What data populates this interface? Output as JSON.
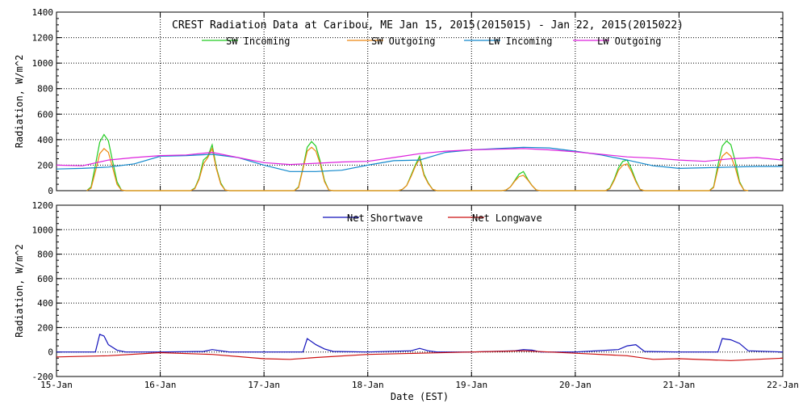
{
  "chart_data": [
    {
      "type": "line",
      "title": "CREST Radiation Data at Caribou, ME   Jan 15, 2015(2015015) - Jan 22, 2015(2015022)",
      "xlabel": "",
      "ylabel": "Radiation, W/m^2",
      "xlim": [
        "2015-01-15",
        "2015-01-22"
      ],
      "ylim": [
        0,
        1400
      ],
      "yticks": [
        0,
        200,
        400,
        600,
        800,
        1000,
        1200,
        1400
      ],
      "grid": true,
      "legend_placement": "top",
      "series": [
        {
          "name": "SW Incoming",
          "color": "#22cc22",
          "x": [
            "2015-01-15 07:00",
            "2015-01-15 08:00",
            "2015-01-15 09:00",
            "2015-01-15 10:00",
            "2015-01-15 11:00",
            "2015-01-15 12:00",
            "2015-01-15 13:00",
            "2015-01-15 14:00",
            "2015-01-15 15:00",
            "2015-01-15 16:00",
            "2015-01-16 07:00",
            "2015-01-16 08:00",
            "2015-01-16 09:00",
            "2015-01-16 10:00",
            "2015-01-16 11:00",
            "2015-01-16 12:00",
            "2015-01-16 13:00",
            "2015-01-16 14:00",
            "2015-01-16 15:00",
            "2015-01-16 16:00",
            "2015-01-17 07:00",
            "2015-01-17 08:00",
            "2015-01-17 09:00",
            "2015-01-17 10:00",
            "2015-01-17 11:00",
            "2015-01-17 12:00",
            "2015-01-17 13:00",
            "2015-01-17 14:00",
            "2015-01-17 15:00",
            "2015-01-17 16:00",
            "2015-01-18 07:00",
            "2015-01-18 08:00",
            "2015-01-18 09:00",
            "2015-01-18 10:00",
            "2015-01-18 11:00",
            "2015-01-18 12:00",
            "2015-01-18 13:00",
            "2015-01-18 14:00",
            "2015-01-18 15:00",
            "2015-01-18 16:00",
            "2015-01-19 07:00",
            "2015-01-19 08:00",
            "2015-01-19 09:00",
            "2015-01-19 10:00",
            "2015-01-19 11:00",
            "2015-01-19 12:00",
            "2015-01-19 13:00",
            "2015-01-19 14:00",
            "2015-01-19 15:00",
            "2015-01-19 16:00",
            "2015-01-20 07:00",
            "2015-01-20 08:00",
            "2015-01-20 09:00",
            "2015-01-20 10:00",
            "2015-01-20 11:00",
            "2015-01-20 12:00",
            "2015-01-20 13:00",
            "2015-01-20 14:00",
            "2015-01-20 15:00",
            "2015-01-20 16:00",
            "2015-01-21 07:00",
            "2015-01-21 08:00",
            "2015-01-21 09:00",
            "2015-01-21 10:00",
            "2015-01-21 11:00",
            "2015-01-21 12:00",
            "2015-01-21 13:00",
            "2015-01-21 14:00",
            "2015-01-21 15:00",
            "2015-01-21 16:00"
          ],
          "values": [
            0,
            30,
            200,
            380,
            440,
            390,
            230,
            70,
            5,
            0,
            0,
            20,
            100,
            240,
            270,
            360,
            180,
            60,
            5,
            0,
            0,
            30,
            180,
            340,
            385,
            350,
            230,
            80,
            5,
            0,
            0,
            10,
            40,
            120,
            200,
            270,
            130,
            60,
            10,
            0,
            0,
            5,
            30,
            80,
            130,
            150,
            90,
            40,
            5,
            0,
            0,
            20,
            90,
            180,
            230,
            240,
            170,
            80,
            10,
            0,
            0,
            30,
            200,
            350,
            390,
            360,
            230,
            70,
            5,
            0
          ]
        },
        {
          "name": "SW Outgoing",
          "color": "#ee8811",
          "x": [
            "2015-01-15 07:00",
            "2015-01-15 08:00",
            "2015-01-15 09:00",
            "2015-01-15 10:00",
            "2015-01-15 11:00",
            "2015-01-15 12:00",
            "2015-01-15 13:00",
            "2015-01-15 14:00",
            "2015-01-15 15:00",
            "2015-01-15 16:00",
            "2015-01-16 07:00",
            "2015-01-16 08:00",
            "2015-01-16 09:00",
            "2015-01-16 10:00",
            "2015-01-16 11:00",
            "2015-01-16 12:00",
            "2015-01-16 13:00",
            "2015-01-16 14:00",
            "2015-01-16 15:00",
            "2015-01-16 16:00",
            "2015-01-17 07:00",
            "2015-01-17 08:00",
            "2015-01-17 09:00",
            "2015-01-17 10:00",
            "2015-01-17 11:00",
            "2015-01-17 12:00",
            "2015-01-17 13:00",
            "2015-01-17 14:00",
            "2015-01-17 15:00",
            "2015-01-17 16:00",
            "2015-01-18 07:00",
            "2015-01-18 08:00",
            "2015-01-18 09:00",
            "2015-01-18 10:00",
            "2015-01-18 11:00",
            "2015-01-18 12:00",
            "2015-01-18 13:00",
            "2015-01-18 14:00",
            "2015-01-18 15:00",
            "2015-01-18 16:00",
            "2015-01-19 07:00",
            "2015-01-19 08:00",
            "2015-01-19 09:00",
            "2015-01-19 10:00",
            "2015-01-19 11:00",
            "2015-01-19 12:00",
            "2015-01-19 13:00",
            "2015-01-19 14:00",
            "2015-01-19 15:00",
            "2015-01-19 16:00",
            "2015-01-20 07:00",
            "2015-01-20 08:00",
            "2015-01-20 09:00",
            "2015-01-20 10:00",
            "2015-01-20 11:00",
            "2015-01-20 12:00",
            "2015-01-20 13:00",
            "2015-01-20 14:00",
            "2015-01-20 15:00",
            "2015-01-20 16:00",
            "2015-01-21 07:00",
            "2015-01-21 08:00",
            "2015-01-21 09:00",
            "2015-01-21 10:00",
            "2015-01-21 11:00",
            "2015-01-21 12:00",
            "2015-01-21 13:00",
            "2015-01-21 14:00",
            "2015-01-21 15:00",
            "2015-01-21 16:00"
          ],
          "values": [
            0,
            20,
            150,
            290,
            330,
            300,
            180,
            50,
            5,
            0,
            0,
            15,
            90,
            210,
            260,
            330,
            170,
            50,
            5,
            0,
            0,
            25,
            170,
            310,
            340,
            310,
            210,
            70,
            5,
            0,
            0,
            10,
            40,
            110,
            190,
            250,
            120,
            55,
            10,
            0,
            0,
            5,
            30,
            75,
            110,
            120,
            85,
            40,
            5,
            0,
            0,
            15,
            80,
            160,
            200,
            210,
            150,
            70,
            10,
            0,
            0,
            25,
            170,
            270,
            300,
            270,
            180,
            60,
            5,
            0
          ]
        },
        {
          "name": "LW Incoming",
          "color": "#1188cc",
          "x": [
            "2015-01-15",
            "2015-01-15 06:00",
            "2015-01-15 12:00",
            "2015-01-15 18:00",
            "2015-01-16",
            "2015-01-16 06:00",
            "2015-01-16 12:00",
            "2015-01-16 18:00",
            "2015-01-17",
            "2015-01-17 06:00",
            "2015-01-17 12:00",
            "2015-01-17 18:00",
            "2015-01-18",
            "2015-01-18 06:00",
            "2015-01-18 12:00",
            "2015-01-18 18:00",
            "2015-01-19",
            "2015-01-19 06:00",
            "2015-01-19 12:00",
            "2015-01-19 18:00",
            "2015-01-20",
            "2015-01-20 06:00",
            "2015-01-20 12:00",
            "2015-01-20 18:00",
            "2015-01-21",
            "2015-01-21 06:00",
            "2015-01-21 12:00",
            "2015-01-21 18:00",
            "2015-01-22"
          ],
          "values": [
            170,
            175,
            185,
            210,
            270,
            275,
            285,
            260,
            200,
            150,
            150,
            160,
            200,
            235,
            240,
            300,
            320,
            330,
            340,
            335,
            310,
            280,
            240,
            195,
            175,
            180,
            185,
            190,
            190
          ]
        },
        {
          "name": "LW Outgoing",
          "color": "#dd22dd",
          "x": [
            "2015-01-15",
            "2015-01-15 06:00",
            "2015-01-15 12:00",
            "2015-01-15 18:00",
            "2015-01-16",
            "2015-01-16 06:00",
            "2015-01-16 12:00",
            "2015-01-16 18:00",
            "2015-01-17",
            "2015-01-17 06:00",
            "2015-01-17 12:00",
            "2015-01-17 18:00",
            "2015-01-18",
            "2015-01-18 06:00",
            "2015-01-18 12:00",
            "2015-01-18 18:00",
            "2015-01-19",
            "2015-01-19 06:00",
            "2015-01-19 12:00",
            "2015-01-19 18:00",
            "2015-01-20",
            "2015-01-20 06:00",
            "2015-01-20 12:00",
            "2015-01-20 18:00",
            "2015-01-21",
            "2015-01-21 06:00",
            "2015-01-21 12:00",
            "2015-01-21 18:00",
            "2015-01-22"
          ],
          "values": [
            200,
            195,
            240,
            260,
            275,
            280,
            300,
            260,
            220,
            205,
            215,
            225,
            230,
            260,
            290,
            310,
            320,
            325,
            330,
            320,
            305,
            285,
            265,
            255,
            240,
            230,
            250,
            260,
            240
          ]
        }
      ]
    },
    {
      "type": "line",
      "title": "",
      "xlabel": "Date (EST)",
      "ylabel": "Radiation, W/m^2",
      "xlim": [
        "2015-01-15",
        "2015-01-22"
      ],
      "ylim": [
        -200,
        1200
      ],
      "yticks": [
        -200,
        0,
        200,
        400,
        600,
        800,
        1000,
        1200
      ],
      "xticks": [
        "2015-01-15",
        "2015-01-16",
        "2015-01-17",
        "2015-01-18",
        "2015-01-19",
        "2015-01-20",
        "2015-01-21",
        "2015-01-22"
      ],
      "xtick_labels": [
        "15-Jan",
        "16-Jan",
        "17-Jan",
        "18-Jan",
        "19-Jan",
        "20-Jan",
        "21-Jan",
        "22-Jan"
      ],
      "grid": true,
      "legend_placement": "top",
      "series": [
        {
          "name": "Net Shortwave",
          "color": "#1111bb",
          "x": [
            "2015-01-15",
            "2015-01-15 09:00",
            "2015-01-15 10:00",
            "2015-01-15 11:00",
            "2015-01-15 12:00",
            "2015-01-15 14:00",
            "2015-01-15 16:00",
            "2015-01-16",
            "2015-01-16 10:00",
            "2015-01-16 12:00",
            "2015-01-16 14:00",
            "2015-01-16 16:00",
            "2015-01-17",
            "2015-01-17 09:00",
            "2015-01-17 10:00",
            "2015-01-17 12:00",
            "2015-01-17 14:00",
            "2015-01-17 16:00",
            "2015-01-18",
            "2015-01-18 10:00",
            "2015-01-18 12:00",
            "2015-01-18 14:00",
            "2015-01-18 16:00",
            "2015-01-19",
            "2015-01-19 10:00",
            "2015-01-19 12:00",
            "2015-01-19 14:00",
            "2015-01-19 16:00",
            "2015-01-20",
            "2015-01-20 10:00",
            "2015-01-20 12:00",
            "2015-01-20 14:00",
            "2015-01-20 16:00",
            "2015-01-21",
            "2015-01-21 09:00",
            "2015-01-21 10:00",
            "2015-01-21 12:00",
            "2015-01-21 14:00",
            "2015-01-21 16:00",
            "2015-01-22"
          ],
          "values": [
            0,
            0,
            145,
            130,
            60,
            15,
            0,
            0,
            5,
            20,
            10,
            0,
            0,
            0,
            110,
            60,
            25,
            5,
            0,
            10,
            30,
            10,
            0,
            0,
            10,
            20,
            15,
            0,
            0,
            20,
            50,
            60,
            5,
            0,
            0,
            110,
            100,
            70,
            10,
            0
          ]
        },
        {
          "name": "Net Longwave",
          "color": "#cc1111",
          "x": [
            "2015-01-15",
            "2015-01-15 12:00",
            "2015-01-16",
            "2015-01-16 12:00",
            "2015-01-17",
            "2015-01-17 06:00",
            "2015-01-17 12:00",
            "2015-01-18",
            "2015-01-18 12:00",
            "2015-01-19",
            "2015-01-19 12:00",
            "2015-01-20",
            "2015-01-20 12:00",
            "2015-01-20 18:00",
            "2015-01-21",
            "2015-01-21 12:00",
            "2015-01-22"
          ],
          "values": [
            -40,
            -30,
            -5,
            -20,
            -55,
            -60,
            -45,
            -20,
            -10,
            0,
            10,
            -10,
            -30,
            -60,
            -55,
            -70,
            -50
          ]
        }
      ]
    }
  ]
}
